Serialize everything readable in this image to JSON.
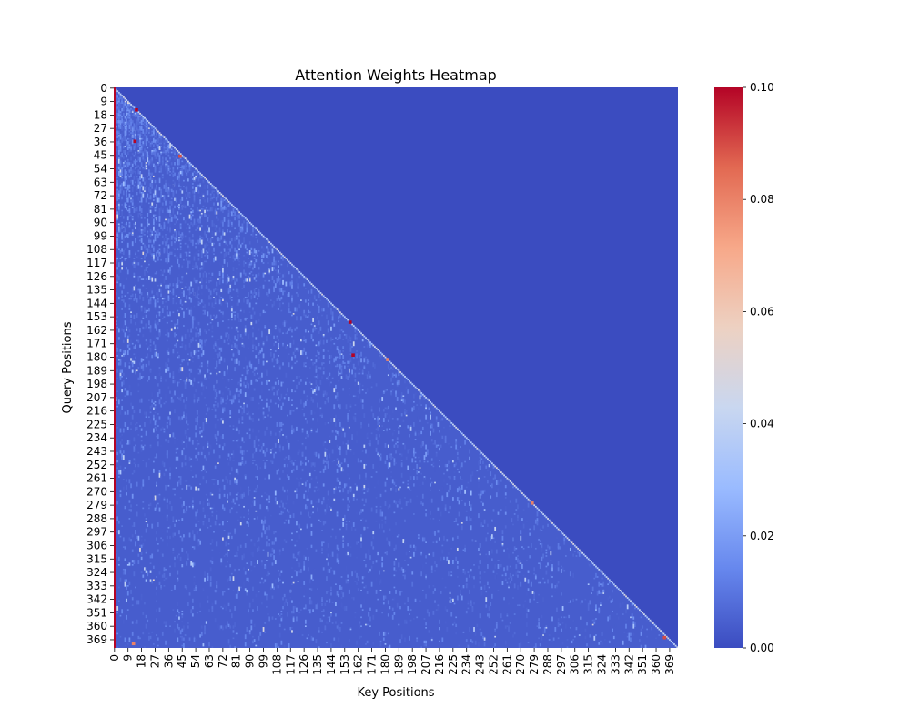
{
  "chart_data": {
    "type": "heatmap",
    "title": "Attention Weights Heatmap",
    "xlabel": "Key Positions",
    "ylabel": "Query Positions",
    "n": 375,
    "x_tick_labels": [
      "0",
      "9",
      "18",
      "27",
      "36",
      "45",
      "54",
      "63",
      "72",
      "81",
      "90",
      "99",
      "108",
      "117",
      "126",
      "135",
      "144",
      "153",
      "162",
      "171",
      "180",
      "189",
      "198",
      "207",
      "216",
      "225",
      "234",
      "243",
      "252",
      "261",
      "270",
      "279",
      "288",
      "297",
      "306",
      "315",
      "324",
      "333",
      "342",
      "351",
      "360",
      "369"
    ],
    "y_tick_labels": [
      "0",
      "9",
      "18",
      "27",
      "36",
      "45",
      "54",
      "63",
      "72",
      "81",
      "90",
      "99",
      "108",
      "117",
      "126",
      "135",
      "144",
      "153",
      "162",
      "171",
      "180",
      "189",
      "198",
      "207",
      "216",
      "225",
      "234",
      "243",
      "252",
      "261",
      "270",
      "279",
      "288",
      "297",
      "306",
      "315",
      "324",
      "333",
      "342",
      "351",
      "360",
      "369"
    ],
    "mask": "causal lower-triangular; entries with key > query are 0",
    "value_range": [
      0.0,
      0.1
    ],
    "colormap": "coolwarm",
    "colorbar": {
      "ticks": [
        "0.00",
        "0.02",
        "0.04",
        "0.06",
        "0.08",
        "0.10"
      ],
      "colors": [
        "#3b4cc0",
        "#6788ee",
        "#9abbff",
        "#c9d7f0",
        "#edd1c2",
        "#f7a889",
        "#e26952",
        "#b40426"
      ]
    },
    "notable_values": [
      {
        "key": 0,
        "query_range": [
          0,
          374
        ],
        "value": 0.1
      },
      {
        "key": 14,
        "query": 14,
        "value": 0.1
      },
      {
        "key": 13,
        "query": 35,
        "value": 0.1
      },
      {
        "key": 43,
        "query": 45,
        "value": 0.09
      },
      {
        "key": 156,
        "query": 156,
        "value": 0.1
      },
      {
        "key": 158,
        "query": 178,
        "value": 0.1
      },
      {
        "key": 181,
        "query": 181,
        "value": 0.08
      },
      {
        "key": 277,
        "query": 277,
        "value": 0.08
      },
      {
        "key": 365,
        "query": 367,
        "value": 0.09
      },
      {
        "key": 12,
        "query": 371,
        "value": 0.08
      }
    ]
  }
}
